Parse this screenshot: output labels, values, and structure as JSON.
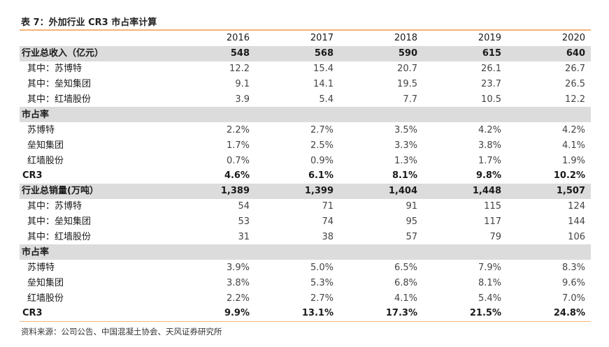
{
  "title": "表 7：外加行业 CR3 市占率计算",
  "source": "资料来源：公司公告、中国混凝土协会、天风证券研究所",
  "years": [
    "2016",
    "2017",
    "2018",
    "2019",
    "2020"
  ],
  "rows": [
    {
      "kind": "band",
      "label": "行业总收入（亿元）",
      "values": [
        "548",
        "568",
        "590",
        "615",
        "640"
      ]
    },
    {
      "kind": "sub",
      "label": "其中：苏博特",
      "values": [
        "12.2",
        "15.4",
        "20.7",
        "26.1",
        "26.7"
      ]
    },
    {
      "kind": "sub",
      "label": "其中：垒知集团",
      "values": [
        "9.1",
        "14.1",
        "19.5",
        "23.7",
        "26.5"
      ]
    },
    {
      "kind": "sub",
      "label": "其中：红墙股份",
      "values": [
        "3.9",
        "5.4",
        "7.7",
        "10.5",
        "12.2"
      ]
    },
    {
      "kind": "band",
      "label": "市占率",
      "values": [
        "",
        "",
        "",
        "",
        ""
      ]
    },
    {
      "kind": "sub",
      "label": "苏博特",
      "values": [
        "2.2%",
        "2.7%",
        "3.5%",
        "4.2%",
        "4.2%"
      ]
    },
    {
      "kind": "sub",
      "label": "垒知集团",
      "values": [
        "1.7%",
        "2.5%",
        "3.3%",
        "3.8%",
        "4.1%"
      ]
    },
    {
      "kind": "sub",
      "label": "红墙股份",
      "values": [
        "0.7%",
        "0.9%",
        "1.3%",
        "1.7%",
        "1.9%"
      ]
    },
    {
      "kind": "tot",
      "label": "CR3",
      "values": [
        "4.6%",
        "6.1%",
        "8.1%",
        "9.8%",
        "10.2%"
      ]
    },
    {
      "kind": "band",
      "label": "行业总销量(万吨）",
      "values": [
        "1,389",
        "1,399",
        "1,404",
        "1,448",
        "1,507"
      ]
    },
    {
      "kind": "sub",
      "label": "其中：苏博特",
      "values": [
        "54",
        "71",
        "91",
        "115",
        "124"
      ]
    },
    {
      "kind": "sub",
      "label": "其中：垒知集团",
      "values": [
        "53",
        "74",
        "95",
        "117",
        "144"
      ]
    },
    {
      "kind": "sub",
      "label": "其中：红墙股份",
      "values": [
        "31",
        "38",
        "57",
        "79",
        "106"
      ]
    },
    {
      "kind": "band",
      "label": "市占率",
      "values": [
        "",
        "",
        "",
        "",
        ""
      ]
    },
    {
      "kind": "sub",
      "label": "苏博特",
      "values": [
        "3.9%",
        "5.0%",
        "6.5%",
        "7.9%",
        "8.3%"
      ]
    },
    {
      "kind": "sub",
      "label": "垒知集团",
      "values": [
        "3.8%",
        "5.3%",
        "6.8%",
        "8.1%",
        "9.6%"
      ]
    },
    {
      "kind": "sub",
      "label": "红墙股份",
      "values": [
        "2.2%",
        "2.7%",
        "4.1%",
        "5.4%",
        "7.0%"
      ]
    },
    {
      "kind": "tot",
      "label": "CR3",
      "values": [
        "9.9%",
        "13.1%",
        "17.3%",
        "21.5%",
        "24.8%"
      ]
    }
  ]
}
